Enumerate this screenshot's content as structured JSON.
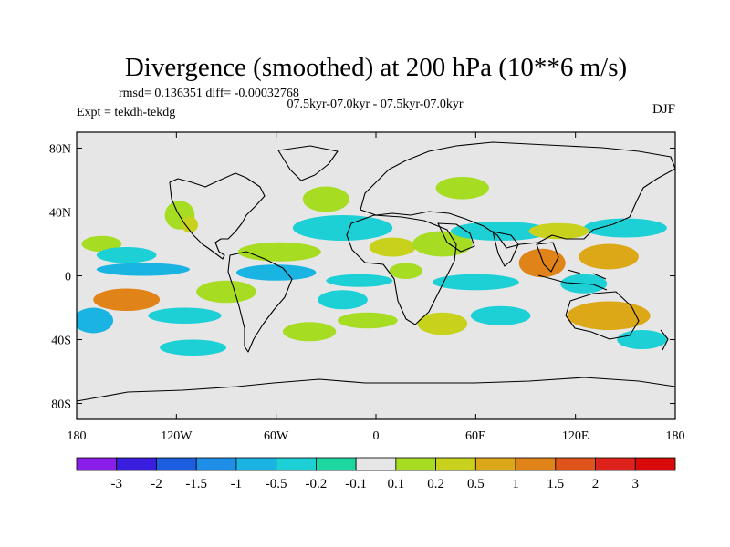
{
  "chart_data": {
    "type": "heatmap",
    "title": "Divergence (smoothed) at 200 hPa (10**6 m/s)",
    "stats_line": "rmsd= 0.136351 diff= -0.00032768",
    "experiment": "Expt = tekdh-tekdg",
    "period": "07.5kyr-07.0kyr - 07.5kyr-07.0kyr",
    "season": "DJF",
    "x_ticks": [
      "180",
      "120W",
      "60W",
      "0",
      "60E",
      "120E",
      "180"
    ],
    "x_tick_values": [
      -180,
      -120,
      -60,
      0,
      60,
      120,
      180
    ],
    "y_ticks": [
      "80N",
      "40N",
      "0",
      "40S",
      "80S"
    ],
    "y_tick_values": [
      80,
      40,
      0,
      -40,
      -80
    ],
    "xlim": [
      -180,
      180
    ],
    "ylim": [
      -90,
      90
    ],
    "colorbar": {
      "labels": [
        "-3",
        "-2",
        "-1.5",
        "-1",
        "-0.5",
        "-0.2",
        "-0.1",
        "0.1",
        "0.2",
        "0.5",
        "1",
        "1.5",
        "2",
        "3"
      ],
      "colors": [
        "#8a1ee8",
        "#3a1ee0",
        "#1c5ee0",
        "#1e8ee6",
        "#1ab4e2",
        "#1cd0d6",
        "#1cd8a0",
        "#e6e6e6",
        "#a6dc22",
        "#c8d21c",
        "#dca818",
        "#e0841a",
        "#e0541c",
        "#e0221c",
        "#d80a0a"
      ]
    },
    "background_color": "#e6e6e6",
    "anomaly_patches": [
      {
        "lon": -118,
        "lat": 38,
        "rx": 9,
        "ry": 9,
        "level": 8
      },
      {
        "lon": -112,
        "lat": 32,
        "rx": 5,
        "ry": 5,
        "level": 9
      },
      {
        "lon": -30,
        "lat": 48,
        "rx": 14,
        "ry": 8,
        "level": 8
      },
      {
        "lon": 52,
        "lat": 55,
        "rx": 16,
        "ry": 7,
        "level": 8
      },
      {
        "lon": -165,
        "lat": 20,
        "rx": 12,
        "ry": 5,
        "level": 8
      },
      {
        "lon": -150,
        "lat": 13,
        "rx": 18,
        "ry": 5,
        "level": 5
      },
      {
        "lon": -140,
        "lat": 4,
        "rx": 28,
        "ry": 4,
        "level": 4
      },
      {
        "lon": -58,
        "lat": 15,
        "rx": 25,
        "ry": 6,
        "level": 8
      },
      {
        "lon": -20,
        "lat": 30,
        "rx": 30,
        "ry": 8,
        "level": 5
      },
      {
        "lon": 10,
        "lat": 18,
        "rx": 14,
        "ry": 6,
        "level": 9
      },
      {
        "lon": 40,
        "lat": 20,
        "rx": 18,
        "ry": 8,
        "level": 8
      },
      {
        "lon": 75,
        "lat": 28,
        "rx": 30,
        "ry": 6,
        "level": 5
      },
      {
        "lon": 150,
        "lat": 30,
        "rx": 25,
        "ry": 6,
        "level": 5
      },
      {
        "lon": 110,
        "lat": 28,
        "rx": 18,
        "ry": 5,
        "level": 9
      },
      {
        "lon": 100,
        "lat": 8,
        "rx": 14,
        "ry": 9,
        "level": 11
      },
      {
        "lon": 140,
        "lat": 12,
        "rx": 18,
        "ry": 8,
        "level": 10
      },
      {
        "lon": 125,
        "lat": -5,
        "rx": 14,
        "ry": 6,
        "level": 5
      },
      {
        "lon": 60,
        "lat": -4,
        "rx": 26,
        "ry": 5,
        "level": 5
      },
      {
        "lon": 18,
        "lat": 3,
        "rx": 10,
        "ry": 5,
        "level": 8
      },
      {
        "lon": -10,
        "lat": -3,
        "rx": 20,
        "ry": 4,
        "level": 5
      },
      {
        "lon": -60,
        "lat": 2,
        "rx": 24,
        "ry": 5,
        "level": 4
      },
      {
        "lon": -150,
        "lat": -15,
        "rx": 20,
        "ry": 7,
        "level": 11
      },
      {
        "lon": -170,
        "lat": -28,
        "rx": 12,
        "ry": 8,
        "level": 4
      },
      {
        "lon": -115,
        "lat": -25,
        "rx": 22,
        "ry": 5,
        "level": 5
      },
      {
        "lon": -90,
        "lat": -10,
        "rx": 18,
        "ry": 7,
        "level": 8
      },
      {
        "lon": -20,
        "lat": -15,
        "rx": 15,
        "ry": 6,
        "level": 5
      },
      {
        "lon": -5,
        "lat": -28,
        "rx": 18,
        "ry": 5,
        "level": 8
      },
      {
        "lon": 40,
        "lat": -30,
        "rx": 15,
        "ry": 7,
        "level": 9
      },
      {
        "lon": 75,
        "lat": -25,
        "rx": 18,
        "ry": 6,
        "level": 5
      },
      {
        "lon": 140,
        "lat": -25,
        "rx": 25,
        "ry": 9,
        "level": 10
      },
      {
        "lon": 160,
        "lat": -40,
        "rx": 15,
        "ry": 6,
        "level": 5
      },
      {
        "lon": -40,
        "lat": -35,
        "rx": 16,
        "ry": 6,
        "level": 8
      },
      {
        "lon": -110,
        "lat": -45,
        "rx": 20,
        "ry": 5,
        "level": 5
      }
    ]
  }
}
